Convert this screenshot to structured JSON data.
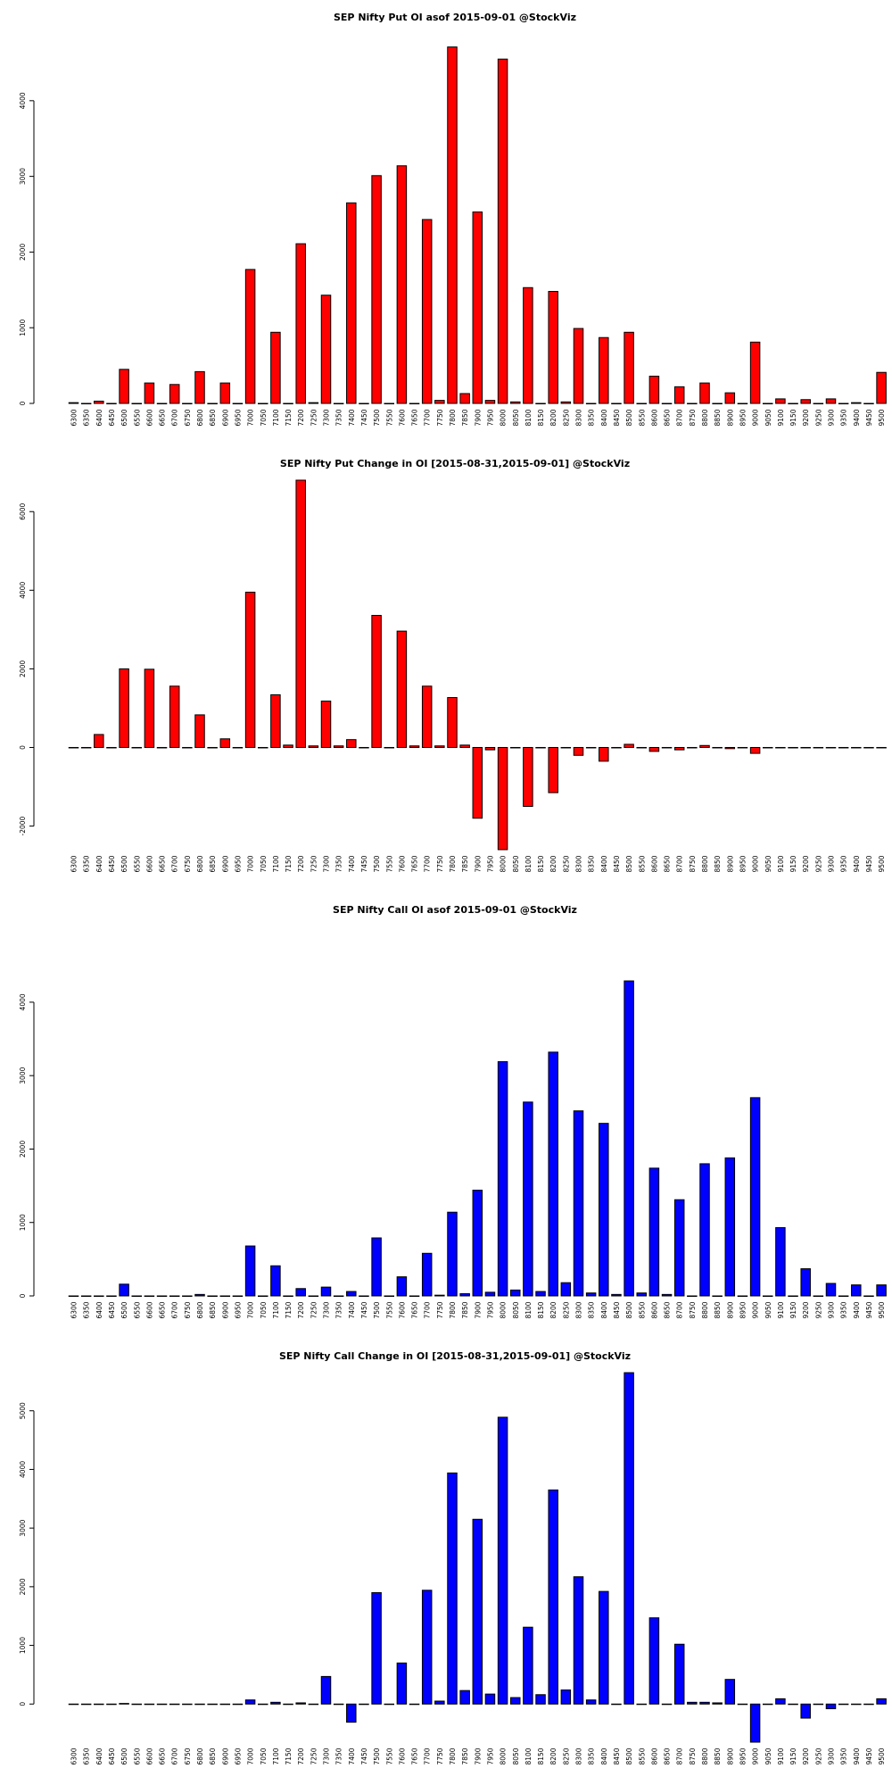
{
  "chart_data": [
    {
      "type": "bar",
      "title": "SEP Nifty Put OI asof 2015-09-01 @StockViz",
      "color": "#ff0000",
      "ylim": [
        0,
        4800
      ],
      "yticks": [
        0,
        1000,
        2000,
        3000,
        4000
      ],
      "categories": [
        "6300",
        "6350",
        "6400",
        "6450",
        "6500",
        "6550",
        "6600",
        "6650",
        "6700",
        "6750",
        "6800",
        "6850",
        "6900",
        "6950",
        "7000",
        "7050",
        "7100",
        "7150",
        "7200",
        "7250",
        "7300",
        "7350",
        "7400",
        "7450",
        "7500",
        "7550",
        "7600",
        "7650",
        "7700",
        "7750",
        "7800",
        "7850",
        "7900",
        "7950",
        "8000",
        "8050",
        "8100",
        "8150",
        "8200",
        "8250",
        "8300",
        "8350",
        "8400",
        "8450",
        "8500",
        "8550",
        "8600",
        "8650",
        "8700",
        "8750",
        "8800",
        "8850",
        "8900",
        "8950",
        "9000",
        "9050",
        "9100",
        "9150",
        "9200",
        "9250",
        "9300",
        "9350",
        "9400",
        "9450",
        "9500"
      ],
      "values": [
        10,
        0,
        30,
        0,
        450,
        0,
        270,
        0,
        250,
        0,
        420,
        0,
        270,
        0,
        1770,
        0,
        940,
        0,
        2110,
        10,
        1430,
        0,
        2650,
        0,
        3010,
        0,
        3140,
        0,
        2430,
        40,
        4710,
        130,
        2530,
        40,
        4550,
        20,
        1530,
        0,
        1480,
        20,
        990,
        0,
        870,
        0,
        940,
        0,
        360,
        0,
        220,
        0,
        270,
        0,
        140,
        0,
        810,
        0,
        60,
        0,
        50,
        0,
        60,
        0,
        10,
        0,
        410
      ]
    },
    {
      "type": "bar",
      "title": "SEP Nifty Put Change in OI [2015-08-31,2015-09-01] @StockViz",
      "color": "#ff0000",
      "ylim": [
        -2600,
        6800
      ],
      "yticks": [
        -2000,
        0,
        2000,
        4000,
        6000
      ],
      "categories": [
        "6300",
        "6350",
        "6400",
        "6450",
        "6500",
        "6550",
        "6600",
        "6650",
        "6700",
        "6750",
        "6800",
        "6850",
        "6900",
        "6950",
        "7000",
        "7050",
        "7100",
        "7150",
        "7200",
        "7250",
        "7300",
        "7350",
        "7400",
        "7450",
        "7500",
        "7550",
        "7600",
        "7650",
        "7700",
        "7750",
        "7800",
        "7850",
        "7900",
        "7950",
        "8000",
        "8050",
        "8100",
        "8150",
        "8200",
        "8250",
        "8300",
        "8350",
        "8400",
        "8450",
        "8500",
        "8550",
        "8600",
        "8650",
        "8700",
        "8750",
        "8800",
        "8850",
        "8900",
        "8950",
        "9000",
        "9050",
        "9100",
        "9150",
        "9200",
        "9250",
        "9300",
        "9350",
        "9400",
        "9450",
        "9500"
      ],
      "values": [
        0,
        0,
        330,
        0,
        2000,
        0,
        1990,
        0,
        1560,
        0,
        830,
        0,
        220,
        0,
        3950,
        0,
        1340,
        60,
        6800,
        40,
        1180,
        40,
        200,
        0,
        3360,
        0,
        2960,
        40,
        1560,
        40,
        1270,
        60,
        -1800,
        -60,
        -2600,
        0,
        -1500,
        0,
        -1150,
        0,
        -200,
        0,
        -350,
        0,
        80,
        0,
        -100,
        0,
        -60,
        0,
        50,
        0,
        -30,
        0,
        -150,
        0,
        0,
        0,
        0,
        0,
        0,
        0,
        0,
        0,
        0
      ]
    },
    {
      "type": "bar",
      "title": "SEP Nifty Call OI asof 2015-09-01 @StockViz",
      "color": "#0000ff",
      "ylim": [
        0,
        4400
      ],
      "yticks": [
        0,
        1000,
        2000,
        3000,
        4000
      ],
      "categories": [
        "6300",
        "6350",
        "6400",
        "6450",
        "6500",
        "6550",
        "6600",
        "6650",
        "6700",
        "6750",
        "6800",
        "6850",
        "6900",
        "6950",
        "7000",
        "7050",
        "7100",
        "7150",
        "7200",
        "7250",
        "7300",
        "7350",
        "7400",
        "7450",
        "7500",
        "7550",
        "7600",
        "7650",
        "7700",
        "7750",
        "7800",
        "7850",
        "7900",
        "7950",
        "8000",
        "8050",
        "8100",
        "8150",
        "8200",
        "8250",
        "8300",
        "8350",
        "8400",
        "8450",
        "8500",
        "8550",
        "8600",
        "8650",
        "8700",
        "8750",
        "8800",
        "8850",
        "8900",
        "8950",
        "9000",
        "9050",
        "9100",
        "9150",
        "9200",
        "9250",
        "9300",
        "9350",
        "9400",
        "9450",
        "9500"
      ],
      "values": [
        0,
        0,
        0,
        0,
        160,
        0,
        0,
        0,
        0,
        0,
        20,
        0,
        0,
        0,
        680,
        0,
        410,
        0,
        100,
        0,
        120,
        0,
        60,
        0,
        790,
        0,
        260,
        0,
        580,
        10,
        1140,
        30,
        1440,
        50,
        3190,
        80,
        2640,
        60,
        3320,
        180,
        2520,
        40,
        2350,
        20,
        4290,
        40,
        1740,
        20,
        1310,
        0,
        1800,
        0,
        1880,
        0,
        2700,
        0,
        930,
        0,
        370,
        0,
        170,
        0,
        150,
        0,
        150
      ]
    },
    {
      "type": "bar",
      "title": "SEP Nifty Call Change in OI [2015-08-31,2015-09-01] @StockViz",
      "color": "#0000ff",
      "ylim": [
        -650,
        5650
      ],
      "yticks": [
        0,
        1000,
        2000,
        3000,
        4000,
        5000
      ],
      "categories": [
        "6300",
        "6350",
        "6400",
        "6450",
        "6500",
        "6550",
        "6600",
        "6650",
        "6700",
        "6750",
        "6800",
        "6850",
        "6900",
        "6950",
        "7000",
        "7050",
        "7100",
        "7150",
        "7200",
        "7250",
        "7300",
        "7350",
        "7400",
        "7450",
        "7500",
        "7550",
        "7600",
        "7650",
        "7700",
        "7750",
        "7800",
        "7850",
        "7900",
        "7950",
        "8000",
        "8050",
        "8100",
        "8150",
        "8200",
        "8250",
        "8300",
        "8350",
        "8400",
        "8450",
        "8500",
        "8550",
        "8600",
        "8650",
        "8700",
        "8750",
        "8800",
        "8850",
        "8900",
        "8950",
        "9000",
        "9050",
        "9100",
        "9150",
        "9200",
        "9250",
        "9300",
        "9350",
        "9400",
        "9450",
        "9500"
      ],
      "values": [
        0,
        0,
        0,
        0,
        10,
        0,
        0,
        0,
        0,
        0,
        0,
        0,
        0,
        0,
        70,
        0,
        30,
        0,
        20,
        0,
        470,
        0,
        -310,
        0,
        1900,
        0,
        700,
        0,
        1940,
        50,
        3940,
        230,
        3150,
        170,
        4890,
        110,
        1310,
        160,
        3650,
        240,
        2170,
        70,
        1920,
        0,
        5650,
        0,
        1470,
        0,
        1020,
        30,
        30,
        20,
        420,
        0,
        -650,
        0,
        90,
        0,
        -240,
        0,
        -80,
        0,
        0,
        0,
        90
      ]
    }
  ]
}
